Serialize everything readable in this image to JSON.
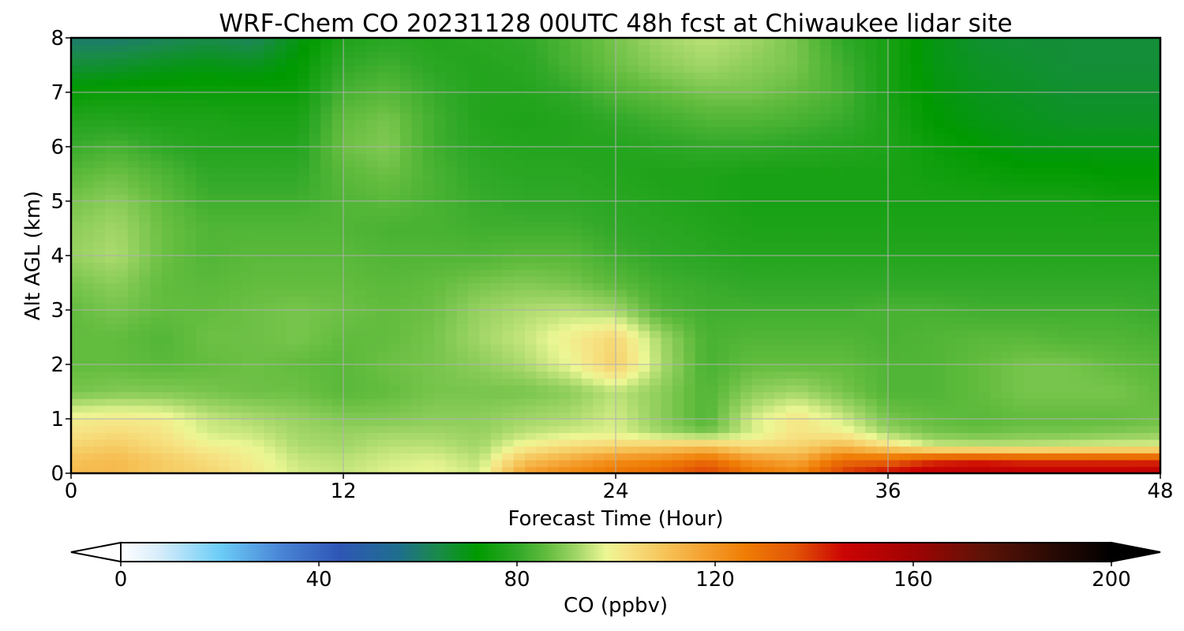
{
  "chart_data": {
    "type": "heatmap",
    "title": "WRF-Chem CO  20231128 00UTC 48h fcst at Chiwaukee lidar site",
    "xlabel": "Forecast Time (Hour)",
    "ylabel": "Alt AGL (km)",
    "xlim": [
      0,
      48
    ],
    "ylim": [
      0,
      8
    ],
    "xticks": [
      "0",
      "12",
      "24",
      "36",
      "48"
    ],
    "yticks": [
      "0",
      "1",
      "2",
      "3",
      "4",
      "5",
      "6",
      "7",
      "8"
    ],
    "grid": true,
    "colorbar": {
      "label": "CO  (ppbv)",
      "min": 0,
      "max": 200,
      "ticks": [
        "0",
        "40",
        "80",
        "120",
        "160",
        "200"
      ],
      "extend": "both",
      "colors": [
        {
          "value": 0,
          "color": "#ffffff"
        },
        {
          "value": 8,
          "color": "#d6ecfb"
        },
        {
          "value": 20,
          "color": "#6ccdf7"
        },
        {
          "value": 32,
          "color": "#4a86d6"
        },
        {
          "value": 44,
          "color": "#2f56b6"
        },
        {
          "value": 56,
          "color": "#1f6e8e"
        },
        {
          "value": 64,
          "color": "#1a8a4a"
        },
        {
          "value": 72,
          "color": "#009a00"
        },
        {
          "value": 80,
          "color": "#30a828"
        },
        {
          "value": 86,
          "color": "#62bc3e"
        },
        {
          "value": 92,
          "color": "#a2d668"
        },
        {
          "value": 98,
          "color": "#ecf794"
        },
        {
          "value": 102,
          "color": "#f6e485"
        },
        {
          "value": 110,
          "color": "#f6c358"
        },
        {
          "value": 118,
          "color": "#f49f2e"
        },
        {
          "value": 126,
          "color": "#ef7d05"
        },
        {
          "value": 136,
          "color": "#e25506"
        },
        {
          "value": 146,
          "color": "#cb0404"
        },
        {
          "value": 160,
          "color": "#a00303"
        },
        {
          "value": 174,
          "color": "#5e1307"
        },
        {
          "value": 188,
          "color": "#2a0a04"
        },
        {
          "value": 200,
          "color": "#000000"
        }
      ]
    },
    "grid_hours": [
      0,
      2,
      4,
      6,
      8,
      10,
      12,
      14,
      16,
      18,
      20,
      22,
      24,
      26,
      28,
      30,
      32,
      34,
      36,
      38,
      40,
      42,
      44,
      46,
      48
    ],
    "grid_altitudes_km": [
      0,
      0.25,
      0.5,
      0.75,
      1,
      1.5,
      2,
      2.5,
      3,
      3.5,
      4,
      4.5,
      5,
      5.5,
      6,
      6.5,
      7,
      7.5,
      8
    ],
    "values_ppbv": [
      [
        112,
        112,
        108,
        106,
        101,
        96,
        95,
        97,
        98,
        96,
        118,
        124,
        128,
        132,
        140,
        128,
        124,
        140,
        146,
        150,
        152,
        150,
        150,
        150,
        152
      ],
      [
        110,
        112,
        108,
        104,
        100,
        95,
        94,
        96,
        97,
        94,
        110,
        116,
        122,
        124,
        130,
        120,
        116,
        130,
        132,
        140,
        142,
        140,
        140,
        140,
        140
      ],
      [
        106,
        108,
        104,
        100,
        98,
        93,
        92,
        94,
        94,
        92,
        100,
        104,
        106,
        108,
        110,
        104,
        106,
        112,
        104,
        96,
        95,
        95,
        96,
        97,
        97
      ],
      [
        102,
        104,
        102,
        96,
        95,
        92,
        91,
        92,
        92,
        91,
        94,
        96,
        97,
        92,
        88,
        96,
        102,
        100,
        92,
        88,
        87,
        88,
        88,
        89,
        90
      ],
      [
        100,
        101,
        100,
        95,
        93,
        91,
        89,
        89,
        90,
        90,
        92,
        93,
        96,
        90,
        84,
        96,
        102,
        96,
        88,
        86,
        85,
        86,
        86,
        86,
        87
      ],
      [
        88,
        89,
        89,
        88,
        87,
        87,
        85,
        86,
        88,
        88,
        88,
        90,
        94,
        90,
        84,
        90,
        92,
        88,
        84,
        84,
        86,
        88,
        88,
        88,
        86
      ],
      [
        86,
        86,
        85,
        86,
        87,
        86,
        85,
        87,
        88,
        90,
        93,
        98,
        107,
        93,
        83,
        86,
        86,
        86,
        84,
        84,
        86,
        88,
        88,
        86,
        85
      ],
      [
        86,
        86,
        84,
        87,
        87,
        88,
        86,
        86,
        88,
        92,
        95,
        100,
        105,
        92,
        83,
        84,
        84,
        84,
        83,
        84,
        85,
        85,
        84,
        84,
        83
      ],
      [
        86,
        88,
        86,
        86,
        87,
        88,
        87,
        86,
        87,
        91,
        93,
        94,
        92,
        84,
        82,
        82,
        82,
        82,
        83,
        83,
        82,
        82,
        82,
        82,
        81
      ],
      [
        88,
        90,
        86,
        85,
        86,
        86,
        86,
        85,
        86,
        88,
        89,
        88,
        85,
        82,
        81,
        80,
        80,
        80,
        80,
        80,
        80,
        80,
        80,
        80,
        80
      ],
      [
        91,
        93,
        87,
        84,
        85,
        85,
        85,
        84,
        84,
        84,
        85,
        85,
        82,
        80,
        79,
        78,
        78,
        78,
        78,
        78,
        78,
        78,
        78,
        78,
        78
      ],
      [
        90,
        92,
        87,
        84,
        84,
        84,
        84,
        83,
        83,
        82,
        82,
        82,
        80,
        79,
        78,
        77,
        77,
        77,
        77,
        77,
        77,
        77,
        77,
        77,
        77
      ],
      [
        88,
        90,
        86,
        82,
        82,
        82,
        84,
        85,
        83,
        81,
        80,
        80,
        79,
        78,
        77,
        76,
        76,
        76,
        76,
        76,
        76,
        76,
        76,
        75,
        75
      ],
      [
        85,
        87,
        84,
        80,
        80,
        80,
        85,
        87,
        83,
        80,
        79,
        79,
        78,
        77,
        77,
        76,
        76,
        76,
        76,
        75,
        74,
        73,
        73,
        72,
        72
      ],
      [
        81,
        83,
        80,
        78,
        78,
        78,
        87,
        89,
        82,
        79,
        78,
        78,
        78,
        79,
        80,
        80,
        79,
        78,
        77,
        74,
        72,
        70,
        70,
        70,
        70
      ],
      [
        78,
        78,
        77,
        77,
        76,
        76,
        86,
        88,
        82,
        78,
        77,
        78,
        80,
        82,
        84,
        84,
        83,
        81,
        77,
        72,
        70,
        69,
        68,
        68,
        68
      ],
      [
        73,
        74,
        74,
        74,
        74,
        74,
        83,
        85,
        81,
        78,
        78,
        80,
        84,
        86,
        88,
        88,
        86,
        83,
        76,
        71,
        69,
        68,
        67,
        67,
        67
      ],
      [
        66,
        67,
        69,
        70,
        69,
        72,
        80,
        82,
        79,
        78,
        79,
        83,
        87,
        90,
        92,
        90,
        88,
        82,
        76,
        70,
        68,
        67,
        66,
        66,
        66
      ],
      [
        60,
        60,
        62,
        64,
        62,
        70,
        77,
        79,
        78,
        79,
        80,
        84,
        88,
        92,
        94,
        92,
        88,
        80,
        76,
        70,
        67,
        66,
        66,
        66,
        66
      ]
    ]
  }
}
